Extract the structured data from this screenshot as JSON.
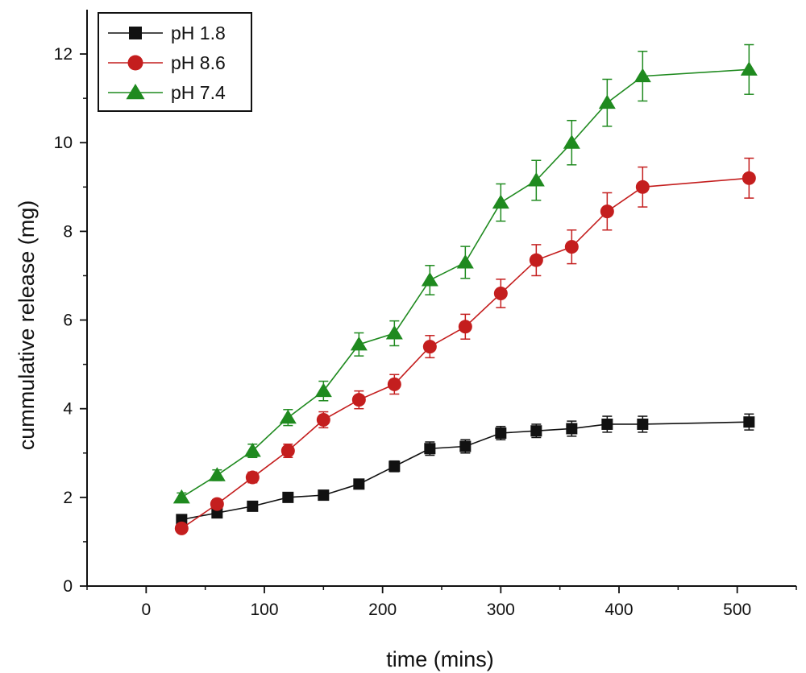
{
  "chart_data": {
    "type": "line",
    "xlabel": "time (mins)",
    "ylabel": "cummulative release (mg)",
    "xlim": [
      -50,
      550
    ],
    "ylim": [
      0,
      13
    ],
    "x_ticks": [
      0,
      100,
      200,
      300,
      400,
      500
    ],
    "y_ticks": [
      0,
      2,
      4,
      6,
      8,
      10,
      12
    ],
    "legend_placement": "top-left",
    "grid": false,
    "x": [
      30,
      60,
      90,
      120,
      150,
      180,
      210,
      240,
      270,
      300,
      330,
      360,
      390,
      420,
      510
    ],
    "series": [
      {
        "name": "pH 1.8",
        "color": "#111111",
        "marker": "square",
        "values": [
          1.5,
          1.65,
          1.8,
          2.0,
          2.05,
          2.3,
          2.7,
          3.1,
          3.15,
          3.45,
          3.5,
          3.55,
          3.65,
          3.65,
          3.7
        ],
        "errors": [
          0.08,
          0.08,
          0.08,
          0.08,
          0.08,
          0.1,
          0.12,
          0.15,
          0.15,
          0.15,
          0.15,
          0.17,
          0.18,
          0.18,
          0.18
        ]
      },
      {
        "name": "pH 8.6",
        "color": "#c41e1e",
        "marker": "circle",
        "values": [
          1.3,
          1.85,
          2.45,
          3.05,
          3.75,
          4.2,
          4.55,
          5.4,
          5.85,
          6.6,
          7.35,
          7.65,
          8.45,
          9.0,
          9.2
        ],
        "errors": [
          0.08,
          0.1,
          0.12,
          0.15,
          0.18,
          0.2,
          0.22,
          0.25,
          0.28,
          0.32,
          0.35,
          0.38,
          0.42,
          0.45,
          0.45
        ]
      },
      {
        "name": "pH 7.4",
        "color": "#1f8a1f",
        "marker": "triangle",
        "values": [
          2.0,
          2.5,
          3.05,
          3.8,
          4.4,
          5.45,
          5.7,
          6.9,
          7.3,
          8.65,
          9.15,
          10.0,
          10.9,
          11.5,
          11.65
        ],
        "errors": [
          0.1,
          0.12,
          0.15,
          0.18,
          0.22,
          0.26,
          0.28,
          0.33,
          0.36,
          0.42,
          0.45,
          0.5,
          0.53,
          0.56,
          0.56
        ]
      }
    ]
  }
}
